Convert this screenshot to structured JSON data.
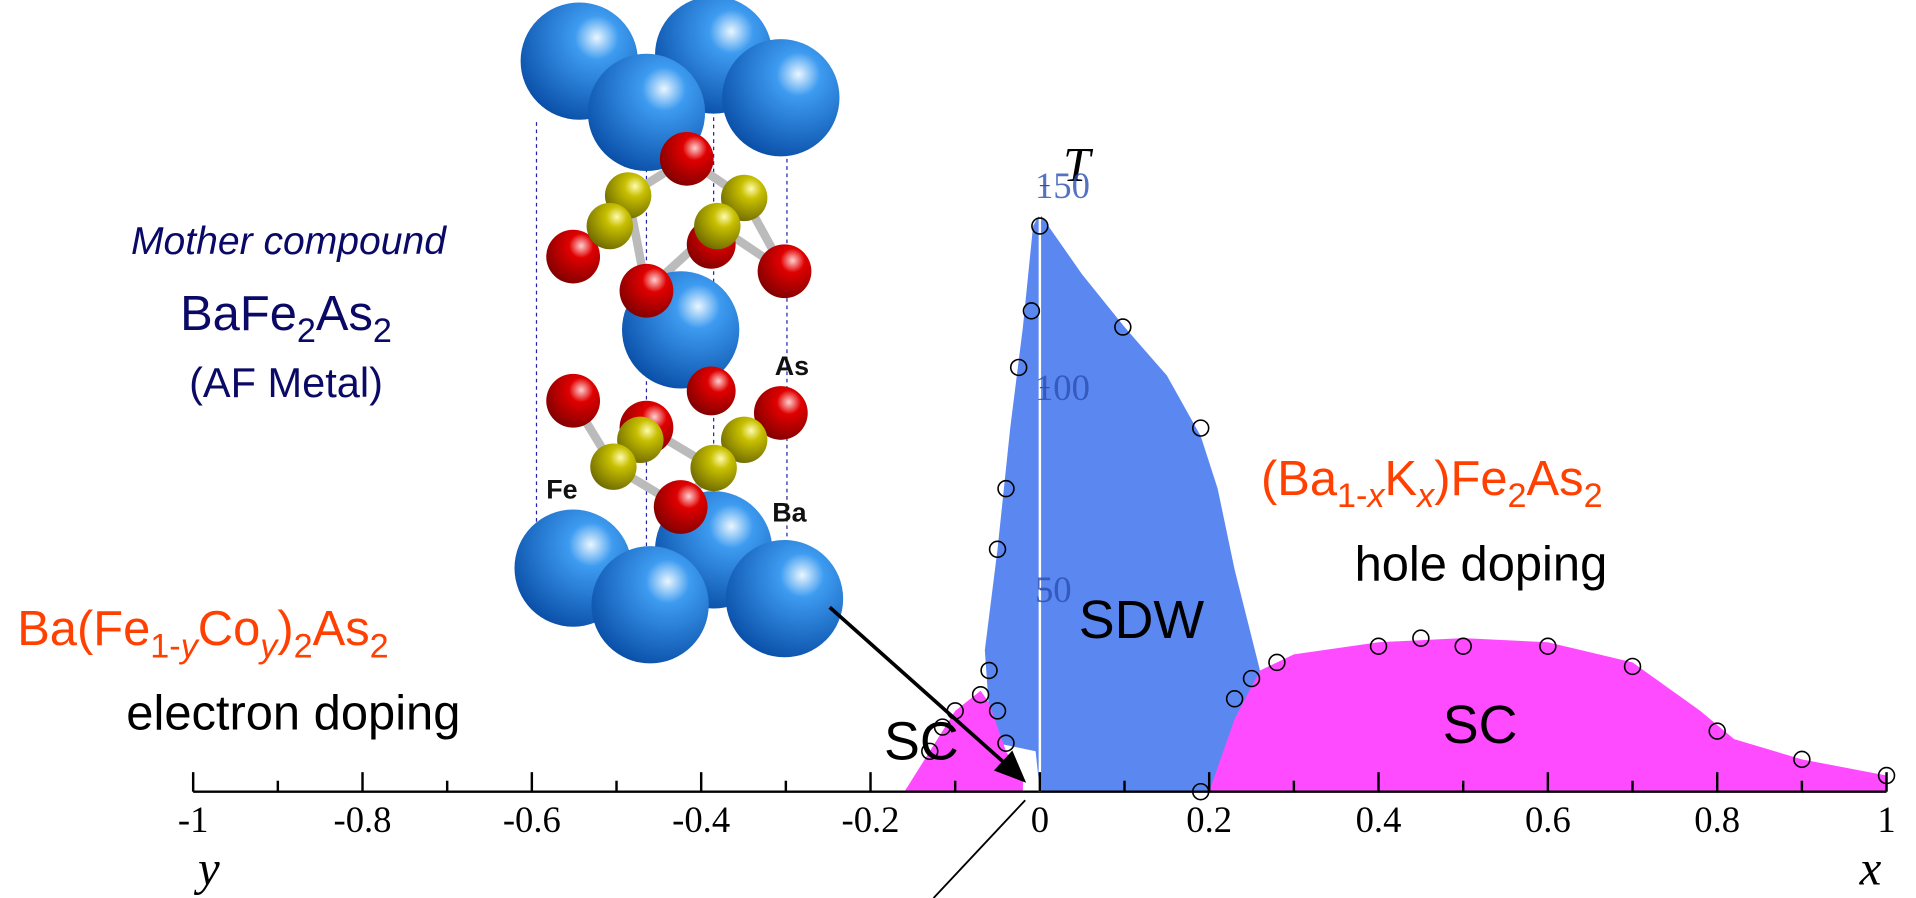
{
  "chart_data": {
    "type": "phase-diagram",
    "y_label": "T",
    "x_label": "x",
    "x_label_left": "y",
    "xlim": [
      -1,
      1
    ],
    "ylim": [
      0,
      153
    ],
    "xticks": [
      -1,
      -0.8,
      -0.6,
      -0.4,
      -0.2,
      0,
      0.2,
      0.4,
      0.6,
      0.8,
      1
    ],
    "xminorticks": [
      -0.9,
      -0.7,
      -0.5,
      -0.3,
      -0.1,
      0.1,
      0.3,
      0.5,
      0.7,
      0.9
    ],
    "yticks": [
      50,
      100,
      150
    ],
    "regions": [
      {
        "label": "SDW",
        "color": "#5b87f0",
        "x": [
          -0.06,
          -0.065,
          -0.05,
          -0.035,
          -0.02,
          -0.008,
          0,
          0.05,
          0.1,
          0.15,
          0.19,
          0.21,
          0.23,
          0.26,
          0.23,
          0.2,
          0,
          -0.005,
          -0.05
        ],
        "y": [
          20,
          35,
          60,
          90,
          115,
          140,
          143,
          128,
          115,
          103,
          88,
          75,
          55,
          30,
          15,
          0,
          0,
          10,
          12
        ]
      },
      {
        "label": "SC",
        "color": "#ff4bff",
        "x": [
          0.2,
          0.23,
          0.26,
          0.3,
          0.4,
          0.5,
          0.6,
          0.7,
          0.78,
          0.82,
          0.9,
          1.0,
          1.0
        ],
        "y": [
          0,
          18,
          30,
          34,
          37,
          38,
          37,
          32,
          20,
          13,
          8,
          4,
          0
        ]
      },
      {
        "label": "SC",
        "color": "#ff4bff",
        "x": [
          -0.16,
          -0.13,
          -0.1,
          -0.07,
          -0.06,
          -0.04,
          -0.02,
          -0.02
        ],
        "y": [
          0,
          10,
          20,
          25,
          22,
          10,
          3,
          0
        ]
      }
    ],
    "series": [
      {
        "color": "#000000",
        "x": [
          0,
          0.098,
          0.19,
          0.19,
          0.23,
          0.25,
          0.28,
          0.4,
          0.45,
          0.5,
          0.6,
          0.7,
          0.8,
          0.9,
          1.0
        ],
        "values": [
          140,
          115,
          90,
          0,
          23,
          28,
          32,
          36,
          38,
          36,
          36,
          31,
          15,
          8,
          4
        ]
      },
      {
        "color": "#000000",
        "x": [
          -0.01,
          -0.025,
          -0.04,
          -0.05,
          -0.06,
          -0.05,
          -0.07,
          -0.1,
          -0.115,
          -0.04,
          -0.13
        ],
        "values": [
          119,
          105,
          75,
          60,
          30,
          20,
          24,
          20,
          16,
          12,
          10
        ]
      }
    ],
    "annotations": {
      "mother_title": "Mother compound",
      "mother_formula": [
        "BaFe",
        "2",
        "As",
        "2"
      ],
      "mother_note": "(AF Metal)",
      "atoms": [
        "As",
        "Fe",
        "Ba"
      ],
      "hole_formula": [
        "(Ba",
        "1-",
        "x",
        "K",
        "x",
        ")Fe",
        "2",
        "As",
        "2"
      ],
      "hole_note": "hole doping",
      "electron_formula": [
        "Ba(Fe",
        "1-",
        "y",
        "Co",
        "y",
        ")",
        "2",
        "As",
        "2"
      ],
      "electron_note": "electron doping"
    }
  }
}
